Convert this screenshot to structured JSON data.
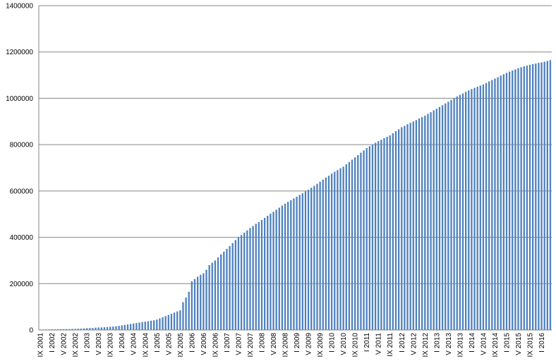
{
  "chart_data": {
    "type": "bar",
    "categories": [
      "IX 2001",
      null,
      null,
      null,
      "I 2002",
      null,
      null,
      null,
      "V 2002",
      null,
      null,
      null,
      "IX 2002",
      null,
      null,
      null,
      "I 2003",
      null,
      null,
      null,
      "V 2003",
      null,
      null,
      null,
      "IX 2003",
      null,
      null,
      null,
      "I 2004",
      null,
      null,
      null,
      "V 2004",
      null,
      null,
      null,
      "IX 2004",
      null,
      null,
      null,
      "I 2005",
      null,
      null,
      null,
      "V 2005",
      null,
      null,
      null,
      "IX 2005",
      null,
      null,
      null,
      "I 2006",
      null,
      null,
      null,
      "V 2006",
      null,
      null,
      null,
      "IX 2006",
      null,
      null,
      null,
      "I 2007",
      null,
      null,
      null,
      "V 2007",
      null,
      null,
      null,
      "IX 2007",
      null,
      null,
      null,
      "I 2008",
      null,
      null,
      null,
      "V 2008",
      null,
      null,
      null,
      "IX 2008",
      null,
      null,
      null,
      "I 2009",
      null,
      null,
      null,
      "V 2009",
      null,
      null,
      null,
      "IX 2009",
      null,
      null,
      null,
      "I 2010",
      null,
      null,
      null,
      "V 2010",
      null,
      null,
      null,
      "IX 2010",
      null,
      null,
      null,
      "I 2011",
      null,
      null,
      null,
      "V 2011",
      null,
      null,
      null,
      "IX 2011",
      null,
      null,
      null,
      "I 2012",
      null,
      null,
      null,
      "V 2012",
      null,
      null,
      null,
      "IX 2012",
      null,
      null,
      null,
      "I 2013",
      null,
      null,
      null,
      "V 2013",
      null,
      null,
      null,
      "IX 2013",
      null,
      null,
      null,
      "I 2014",
      null,
      null,
      null,
      "V 2014",
      null,
      null,
      null,
      "IX 2014",
      null,
      null,
      null,
      "I 2015",
      null,
      null,
      null,
      "V 2015",
      null,
      null,
      null,
      "IX 2015",
      null,
      null,
      null,
      "I 2016",
      null,
      null,
      null
    ],
    "values": [
      2000,
      2000,
      2500,
      2500,
      3000,
      3000,
      3000,
      3500,
      3500,
      4000,
      4000,
      4500,
      5000,
      5500,
      6000,
      7000,
      8000,
      8500,
      9000,
      10000,
      11000,
      11000,
      12000,
      13000,
      14000,
      15000,
      16000,
      18000,
      20000,
      22000,
      24000,
      26000,
      28000,
      30000,
      32000,
      34000,
      36000,
      38000,
      40000,
      42000,
      45000,
      50000,
      55000,
      60000,
      65000,
      70000,
      75000,
      80000,
      85000,
      120000,
      140000,
      165000,
      210000,
      220000,
      230000,
      238000,
      245000,
      260000,
      280000,
      290000,
      300000,
      313000,
      326000,
      338000,
      350000,
      362000,
      375000,
      388000,
      400000,
      410000,
      420000,
      430000,
      440000,
      449000,
      458000,
      466000,
      475000,
      484000,
      493000,
      502000,
      510000,
      519000,
      528000,
      537000,
      545000,
      553000,
      560000,
      568000,
      575000,
      583000,
      590000,
      598000,
      605000,
      614000,
      622000,
      631000,
      640000,
      649000,
      658000,
      666000,
      675000,
      683000,
      690000,
      698000,
      705000,
      715000,
      725000,
      735000,
      745000,
      755000,
      765000,
      775000,
      785000,
      793000,
      800000,
      808000,
      815000,
      821000,
      828000,
      834000,
      840000,
      849000,
      858000,
      866000,
      875000,
      881000,
      888000,
      894000,
      900000,
      906000,
      913000,
      919000,
      925000,
      933000,
      940000,
      948000,
      955000,
      963000,
      970000,
      978000,
      985000,
      993000,
      1000000,
      1008000,
      1015000,
      1021000,
      1028000,
      1034000,
      1040000,
      1045000,
      1050000,
      1055000,
      1060000,
      1066000,
      1073000,
      1079000,
      1085000,
      1091000,
      1098000,
      1104000,
      1110000,
      1115000,
      1120000,
      1125000,
      1130000,
      1134000,
      1138000,
      1141000,
      1145000,
      1148000,
      1150000,
      1153000,
      1155000,
      1158000,
      1161000,
      1165000
    ],
    "color": "#4f81bd",
    "ylim": [
      0,
      1400000
    ],
    "yticks": [
      0,
      200000,
      400000,
      600000,
      800000,
      1000000,
      1200000,
      1400000
    ],
    "grid": true
  }
}
